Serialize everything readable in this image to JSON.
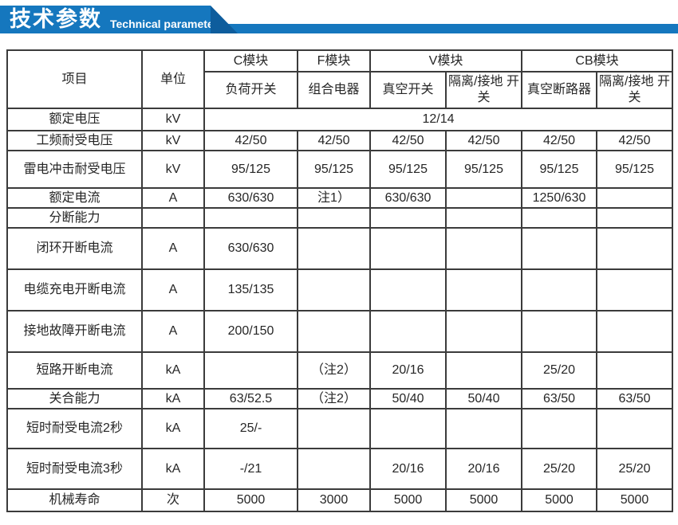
{
  "banner": {
    "title": "技术参数",
    "subtitle": "Technical parameter",
    "accent_color": "#1577be",
    "accent_dark_color": "#0e5d9d"
  },
  "table": {
    "header": {
      "item": "项目",
      "unit": "单位",
      "module_groups": [
        {
          "label": "C模块",
          "colspan": 1
        },
        {
          "label": "F模块",
          "colspan": 1
        },
        {
          "label": "V模块",
          "colspan": 2
        },
        {
          "label": "CB模块",
          "colspan": 2
        }
      ],
      "sub_columns": [
        "负荷开关",
        "组合电器",
        "真空开关",
        "隔离/接地 开关",
        "真空断路器",
        "隔离/接地 开关"
      ]
    },
    "rows": [
      {
        "item": "额定电压",
        "unit": "kV",
        "merged_value": "12/14"
      },
      {
        "item": "工频耐受电压",
        "unit": "kV",
        "values": [
          "42/50",
          "42/50",
          "42/50",
          "42/50",
          "42/50",
          "42/50"
        ]
      },
      {
        "item": "雷电冲击耐受电压",
        "unit": "kV",
        "values": [
          "95/125",
          "95/125",
          "95/125",
          "95/125",
          "95/125",
          "95/125"
        ]
      },
      {
        "item": "额定电流",
        "unit": "A",
        "values": [
          "630/630",
          "注1）",
          "630/630",
          "",
          "1250/630",
          ""
        ]
      },
      {
        "item": "分断能力",
        "unit": "",
        "values": [
          "",
          "",
          "",
          "",
          "",
          ""
        ]
      },
      {
        "item": "闭环开断电流",
        "unit": "A",
        "values": [
          "630/630",
          "",
          "",
          "",
          "",
          ""
        ]
      },
      {
        "item": "电缆充电开断电流",
        "unit": "A",
        "values": [
          "135/135",
          "",
          "",
          "",
          "",
          ""
        ]
      },
      {
        "item": "接地故障开断电流",
        "unit": "A",
        "values": [
          "200/150",
          "",
          "",
          "",
          "",
          ""
        ]
      },
      {
        "item": "短路开断电流",
        "unit": "kA",
        "values": [
          "",
          "（注2）",
          "20/16",
          "",
          "25/20",
          ""
        ]
      },
      {
        "item": "关合能力",
        "unit": "kA",
        "values": [
          "63/52.5",
          "（注2）",
          "50/40",
          "50/40",
          "63/50",
          "63/50"
        ]
      },
      {
        "item": "短时耐受电流2秒",
        "unit": "kA",
        "values": [
          "25/-",
          "",
          "",
          "",
          "",
          ""
        ]
      },
      {
        "item": "短时耐受电流3秒",
        "unit": "kA",
        "values": [
          "-/21",
          "",
          "20/16",
          "20/16",
          "25/20",
          "25/20"
        ]
      },
      {
        "item": "机械寿命",
        "unit": "次",
        "values": [
          "5000",
          "3000",
          "5000",
          "5000",
          "5000",
          "5000"
        ]
      }
    ]
  }
}
